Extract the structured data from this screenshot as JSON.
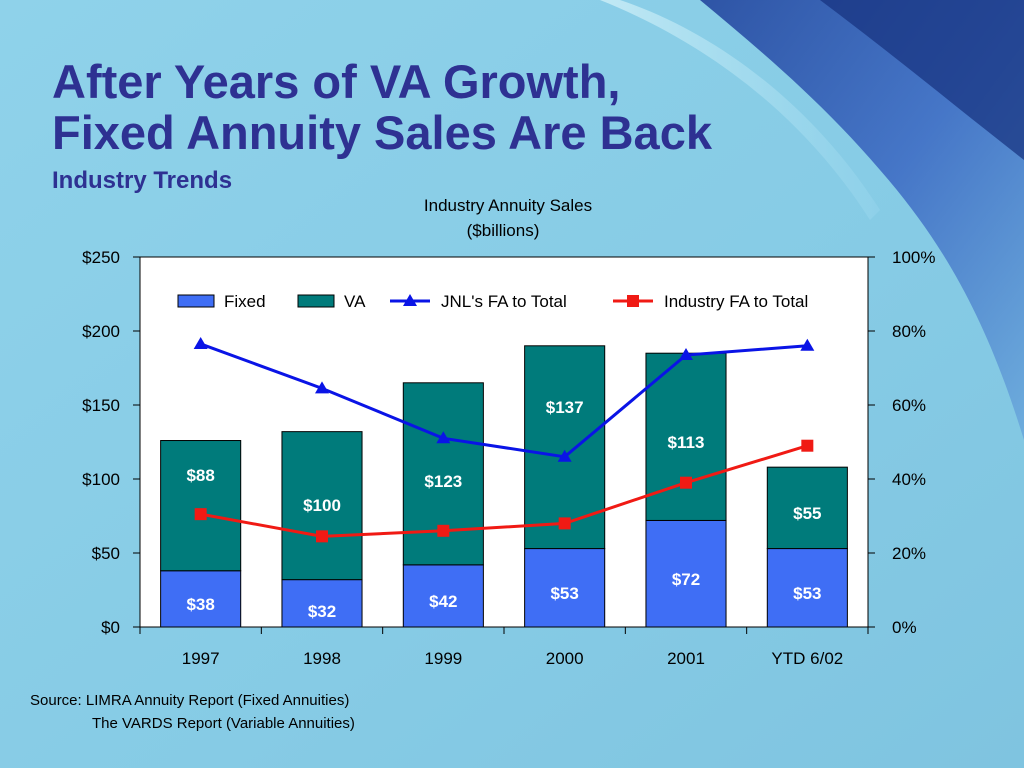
{
  "slide": {
    "title_line1": "After Years of VA Growth,",
    "title_line2": "Fixed Annuity Sales Are Back",
    "subtitle": "Industry Trends",
    "source_line1": "Source: LIMRA Annuity Report (Fixed Annuities)",
    "source_line2": "The VARDS Report (Variable Annuities)"
  },
  "colors": {
    "title": "#2e3192",
    "fixed": "#3f6ef5",
    "va": "#007b7b",
    "jnl_line": "#0a14e6",
    "industry_line": "#f01a14",
    "background": "#87cde6"
  },
  "chart_data": {
    "type": "bar",
    "stacked": true,
    "title": "Industry Annuity Sales",
    "subtitle": "($billions)",
    "categories": [
      "1997",
      "1998",
      "1999",
      "2000",
      "2001",
      "YTD 6/02"
    ],
    "series": [
      {
        "name": "Fixed",
        "type": "bar",
        "values": [
          38,
          32,
          42,
          53,
          72,
          53
        ],
        "labels": [
          "$38",
          "$32",
          "$42",
          "$53",
          "$72",
          "$53"
        ]
      },
      {
        "name": "VA",
        "type": "bar",
        "values": [
          88,
          100,
          123,
          137,
          113,
          55
        ],
        "labels": [
          "$88",
          "$100",
          "$123",
          "$137",
          "$113",
          "$55"
        ]
      },
      {
        "name": "JNL's FA to Total",
        "type": "line",
        "axis": "right",
        "marker": "triangle",
        "values": [
          76.5,
          64.5,
          51,
          46,
          73.5,
          76
        ]
      },
      {
        "name": "Industry FA to Total",
        "type": "line",
        "axis": "right",
        "marker": "square",
        "values": [
          30.5,
          24.5,
          26,
          28,
          39,
          49
        ]
      }
    ],
    "y_left": {
      "ylim": [
        0,
        250
      ],
      "ticks": [
        0,
        50,
        100,
        150,
        200,
        250
      ],
      "tick_labels": [
        "$0",
        "$50",
        "$100",
        "$150",
        "$200",
        "$250"
      ]
    },
    "y_right": {
      "ylim": [
        0,
        100
      ],
      "ticks": [
        0,
        20,
        40,
        60,
        80,
        100
      ],
      "tick_labels": [
        "0%",
        "20%",
        "40%",
        "60%",
        "80%",
        "100%"
      ]
    },
    "legend": {
      "placement": "top",
      "entries": [
        "Fixed",
        "VA",
        "JNL's FA to Total",
        "Industry FA to Total"
      ]
    },
    "grid": false
  }
}
